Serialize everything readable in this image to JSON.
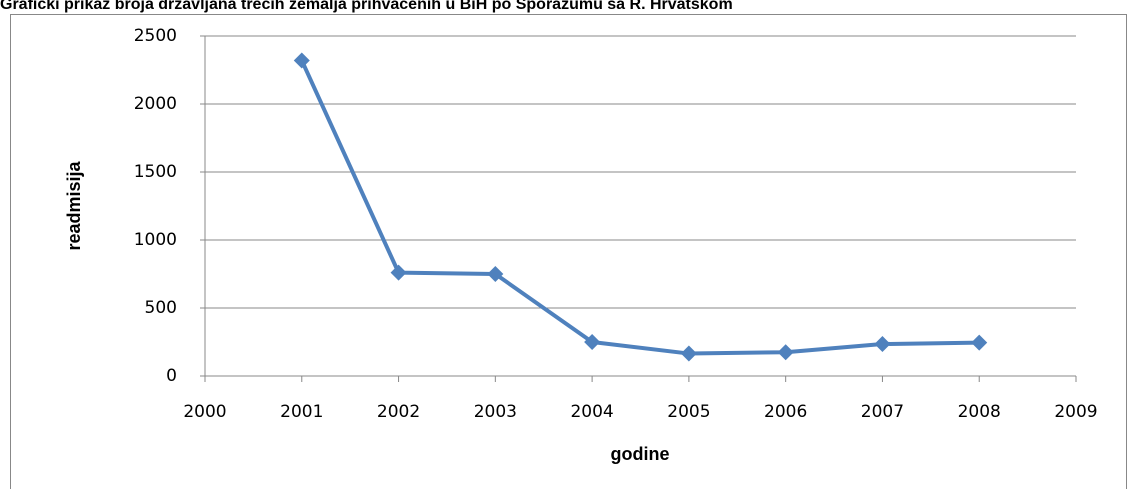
{
  "chart_data": {
    "type": "line",
    "title": "Grafički prikaz broja državljana trećih zemalja prihvaćenih u BiH po Sporazumu sa R. Hrvatskom",
    "x_label": "godine",
    "y_label": "readmisija",
    "x": [
      2001,
      2002,
      2003,
      2004,
      2005,
      2006,
      2007,
      2008
    ],
    "series": [
      {
        "name": "readmisija",
        "color": "#4f81bd",
        "values": [
          2320,
          760,
          750,
          250,
          165,
          175,
          235,
          245
        ]
      }
    ],
    "xlim": [
      2000,
      2009
    ],
    "xticks": [
      2000,
      2001,
      2002,
      2003,
      2004,
      2005,
      2006,
      2007,
      2008,
      2009
    ],
    "ylim": [
      0,
      2500
    ],
    "yticks": [
      0,
      500,
      1000,
      1500,
      2000,
      2500
    ],
    "grid": true
  }
}
